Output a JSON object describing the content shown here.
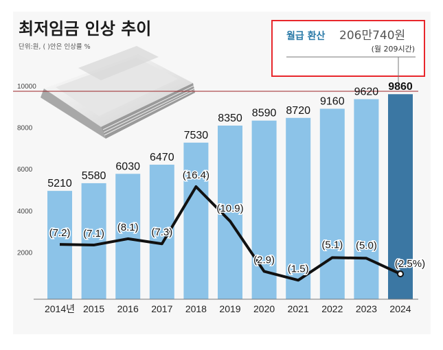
{
  "header": {
    "title": "최저임금 인상 추이",
    "unit_note": "단위:원, ( )안은 인상률 %"
  },
  "note": {
    "label": "월급 환산",
    "value": "206만740원",
    "detail": "(월 209시간)"
  },
  "colors": {
    "bar": "#8cc3e8",
    "bar_highlight": "#3b77a3",
    "line": "#111111",
    "reference_line": "#9b2226",
    "highlight_rate": "#8b1a1a",
    "note_border": "#e8262b"
  },
  "chart_data": {
    "type": "bar",
    "categories": [
      "2014년",
      "2015",
      "2016",
      "2017",
      "2018",
      "2019",
      "2020",
      "2021",
      "2022",
      "2023",
      "2024"
    ],
    "values": [
      5210,
      5580,
      6030,
      6470,
      7530,
      8350,
      8590,
      8720,
      9160,
      9620,
      9860
    ],
    "value_labels": [
      "5210",
      "5580",
      "6030",
      "6470",
      "7530",
      "8350",
      "8590",
      "8720",
      "9160",
      "9620",
      "9860"
    ],
    "rates": [
      7.2,
      7.1,
      8.1,
      7.3,
      16.4,
      10.9,
      2.9,
      1.5,
      5.1,
      5.0,
      2.5
    ],
    "rate_labels": [
      "(7.2)",
      "(7.1)",
      "(8.1)",
      "(7.3)",
      "(16.4)",
      "(10.9)",
      "(2.9)",
      "(1.5)",
      "(5.1)",
      "(5.0)",
      "(2.5%)"
    ],
    "y_ticks": [
      "10000",
      "8000",
      "6000",
      "4000",
      "2000"
    ],
    "ylim": [
      0,
      10000
    ],
    "reference_line": 10000,
    "highlight_index": 10,
    "grid": false,
    "legend": "none"
  }
}
